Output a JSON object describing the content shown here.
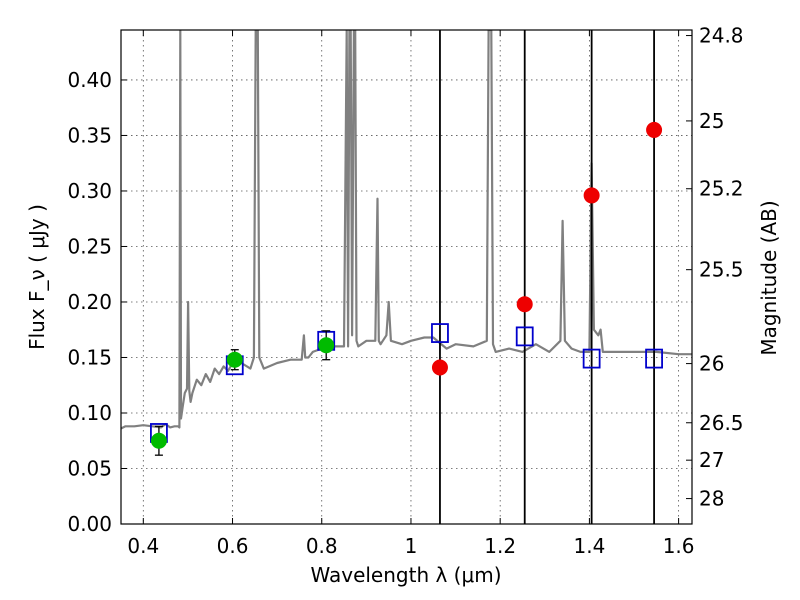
{
  "chart_data": {
    "type": "scatter",
    "xlabel": "Wavelength  λ (μm)",
    "ylabel": "Flux  F_ν  ( μJy )",
    "ylabel_right": "Magnitude (AB)",
    "xlim": [
      0.35,
      1.63
    ],
    "ylim": [
      0.0,
      0.445
    ],
    "grid": true,
    "x_ticks": [
      0.4,
      0.6,
      0.8,
      1.0,
      1.2,
      1.4,
      1.6
    ],
    "x_tick_labels": [
      "0.4",
      "0.6",
      "0.8",
      "1",
      "1.2",
      "1.4",
      "1.6"
    ],
    "y_ticks": [
      0.0,
      0.05,
      0.1,
      0.15,
      0.2,
      0.25,
      0.3,
      0.35,
      0.4
    ],
    "y_tick_labels": [
      "0.00",
      "0.05",
      "0.10",
      "0.15",
      "0.20",
      "0.25",
      "0.30",
      "0.35",
      "0.40"
    ],
    "right_ticks": [
      {
        "label": "24.8",
        "flux": 0.44
      },
      {
        "label": "25",
        "flux": 0.3631
      },
      {
        "label": "25.2",
        "flux": 0.302
      },
      {
        "label": "25.5",
        "flux": 0.2291
      },
      {
        "label": "26",
        "flux": 0.1445
      },
      {
        "label": "26.5",
        "flux": 0.0912
      },
      {
        "label": "27",
        "flux": 0.0575
      },
      {
        "label": "28",
        "flux": 0.0229
      }
    ],
    "vertical_lines": [
      1.065,
      1.255,
      1.405,
      1.545
    ],
    "series": [
      {
        "kind": "line",
        "color": "#808080",
        "x": [
          0.35,
          0.36,
          0.38,
          0.4,
          0.42,
          0.44,
          0.45,
          0.46,
          0.47,
          0.478,
          0.481,
          0.483,
          0.4845,
          0.4862,
          0.488,
          0.493,
          0.498,
          0.5005,
          0.503,
          0.506,
          0.51,
          0.52,
          0.53,
          0.54,
          0.55,
          0.56,
          0.57,
          0.58,
          0.59,
          0.6,
          0.62,
          0.64,
          0.648,
          0.652,
          0.656,
          0.6563,
          0.6566,
          0.66,
          0.67,
          0.7,
          0.73,
          0.755,
          0.76,
          0.763,
          0.77,
          0.78,
          0.8,
          0.83,
          0.85,
          0.856,
          0.859,
          0.862,
          0.865,
          0.868,
          0.872,
          0.875,
          0.878,
          0.882,
          0.9,
          0.92,
          0.925,
          0.928,
          0.932,
          0.945,
          0.95,
          0.955,
          0.98,
          1.0,
          1.03,
          1.05,
          1.08,
          1.1,
          1.14,
          1.17,
          1.174,
          1.18,
          1.184,
          1.19,
          1.22,
          1.25,
          1.28,
          1.31,
          1.335,
          1.34,
          1.345,
          1.36,
          1.38,
          1.4,
          1.405,
          1.41,
          1.42,
          1.425,
          1.43,
          1.45,
          1.5,
          1.55,
          1.6,
          1.63
        ],
        "y": [
          0.086,
          0.088,
          0.088,
          0.089,
          0.088,
          0.087,
          0.09,
          0.087,
          0.088,
          0.088,
          0.087,
          0.445,
          0.095,
          0.1,
          0.105,
          0.118,
          0.122,
          0.2,
          0.12,
          0.11,
          0.118,
          0.13,
          0.125,
          0.135,
          0.128,
          0.14,
          0.135,
          0.142,
          0.138,
          0.145,
          0.145,
          0.14,
          0.15,
          0.445,
          0.445,
          0.445,
          0.445,
          0.15,
          0.14,
          0.145,
          0.148,
          0.148,
          0.17,
          0.15,
          0.15,
          0.155,
          0.158,
          0.16,
          0.16,
          0.445,
          0.16,
          0.445,
          0.445,
          0.17,
          0.445,
          0.445,
          0.165,
          0.16,
          0.165,
          0.165,
          0.293,
          0.165,
          0.162,
          0.17,
          0.2,
          0.165,
          0.162,
          0.165,
          0.168,
          0.168,
          0.158,
          0.162,
          0.16,
          0.165,
          0.445,
          0.445,
          0.162,
          0.155,
          0.158,
          0.155,
          0.162,
          0.155,
          0.165,
          0.273,
          0.165,
          0.158,
          0.155,
          0.155,
          0.325,
          0.175,
          0.17,
          0.175,
          0.155,
          0.155,
          0.155,
          0.155,
          0.153,
          0.153
        ]
      },
      {
        "kind": "open-square",
        "color": "#0000cc",
        "x": [
          0.435,
          0.605,
          0.81,
          1.065,
          1.255,
          1.405,
          1.545
        ],
        "y": [
          0.082,
          0.143,
          0.165,
          0.172,
          0.169,
          0.149,
          0.149
        ]
      },
      {
        "kind": "point",
        "color": "#00bb00",
        "x": [
          0.435,
          0.605,
          0.81
        ],
        "y": [
          0.075,
          0.148,
          0.161
        ],
        "yerr": [
          0.013,
          0.009,
          0.013
        ]
      },
      {
        "kind": "point",
        "color": "#ee0000",
        "x": [
          1.065,
          1.255,
          1.405,
          1.545
        ],
        "y": [
          0.141,
          0.198,
          0.296,
          0.355
        ]
      }
    ]
  }
}
